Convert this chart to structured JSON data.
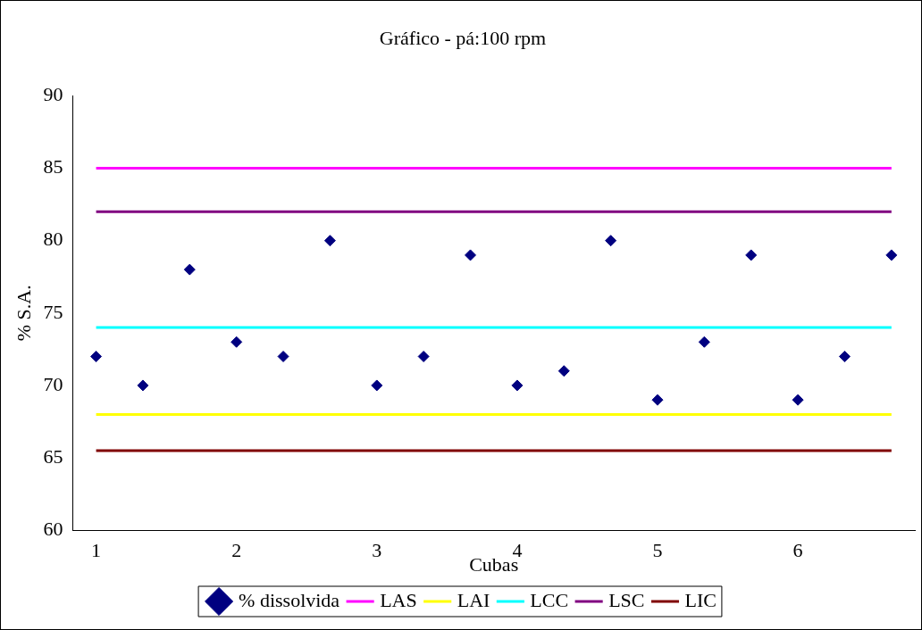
{
  "chart_data": {
    "type": "scatter",
    "title": "Gráfico - pá:100 rpm",
    "xlabel": "Cubas",
    "ylabel": "% S.A.",
    "categories": [
      "1",
      null,
      null,
      "2",
      null,
      null,
      "3",
      null,
      null,
      "4",
      null,
      null,
      "5",
      null,
      null,
      "6",
      null,
      null
    ],
    "ylim": [
      60,
      90
    ],
    "yticks": [
      60,
      65,
      70,
      75,
      80,
      85,
      90
    ],
    "grid": false,
    "legend": "bottom",
    "series": [
      {
        "name": "% dissolvida",
        "marker": "diamond",
        "color": "#000080",
        "values": [
          72,
          70,
          78,
          73,
          72,
          80,
          70,
          72,
          79,
          70,
          71,
          80,
          69,
          73,
          79,
          69,
          72,
          79
        ]
      },
      {
        "name": "LAS",
        "type": "line",
        "marker": "none",
        "color": "#ff00ff",
        "values": [
          85,
          85,
          85,
          85,
          85,
          85,
          85,
          85,
          85,
          85,
          85,
          85,
          85,
          85,
          85,
          85,
          85,
          85
        ]
      },
      {
        "name": "LAI",
        "type": "line",
        "marker": "none",
        "color": "#ffff00",
        "values": [
          68,
          68,
          68,
          68,
          68,
          68,
          68,
          68,
          68,
          68,
          68,
          68,
          68,
          68,
          68,
          68,
          68,
          68
        ]
      },
      {
        "name": "LCC",
        "type": "line",
        "marker": "none",
        "color": "#00ffff",
        "values": [
          74,
          74,
          74,
          74,
          74,
          74,
          74,
          74,
          74,
          74,
          74,
          74,
          74,
          74,
          74,
          74,
          74,
          74
        ]
      },
      {
        "name": "LSC",
        "type": "line",
        "marker": "none",
        "color": "#800080",
        "values": [
          82,
          82,
          82,
          82,
          82,
          82,
          82,
          82,
          82,
          82,
          82,
          82,
          82,
          82,
          82,
          82,
          82,
          82
        ]
      },
      {
        "name": "LIC",
        "type": "line",
        "marker": "none",
        "color": "#800000",
        "values": [
          65.5,
          65.5,
          65.5,
          65.5,
          65.5,
          65.5,
          65.5,
          65.5,
          65.5,
          65.5,
          65.5,
          65.5,
          65.5,
          65.5,
          65.5,
          65.5,
          65.5,
          65.5
        ]
      }
    ]
  }
}
